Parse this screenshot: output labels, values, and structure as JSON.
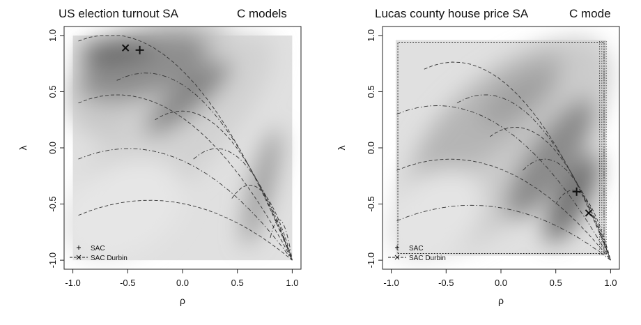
{
  "chart_data": [
    {
      "type": "heatmap",
      "title": "US election turnout SA",
      "subtitle": "C models",
      "xlabel": "ρ",
      "ylabel": "λ",
      "xlim": [
        -1.0,
        1.0
      ],
      "ylim": [
        -1.0,
        1.0
      ],
      "xticks": [
        "-1.0",
        "-0.5",
        "0.0",
        "0.5",
        "1.0"
      ],
      "yticks": [
        "-1.0",
        "-0.5",
        "0.0",
        "0.5",
        "1.0"
      ],
      "legend": {
        "position": "bottom-left",
        "entries": [
          "SAC",
          "SAC Durbin"
        ]
      },
      "points": [
        {
          "name": "SAC",
          "marker": "+",
          "x": -0.39,
          "y": 0.87
        },
        {
          "name": "SAC Durbin",
          "marker": "x",
          "x": -0.52,
          "y": 0.89
        }
      ]
    },
    {
      "type": "heatmap",
      "title": "Lucas county house price SA",
      "subtitle": "C mode",
      "xlabel": "ρ",
      "ylabel": "λ",
      "xlim": [
        -1.0,
        1.0
      ],
      "ylim": [
        -1.0,
        1.0
      ],
      "xticks": [
        "-1.0",
        "-0.5",
        "0.0",
        "0.5",
        "1.0"
      ],
      "yticks": [
        "-1.0",
        "-0.5",
        "0.0",
        "0.5",
        "1.0"
      ],
      "legend": {
        "position": "bottom-left",
        "entries": [
          "SAC",
          "SAC Durbin"
        ]
      },
      "points": [
        {
          "name": "SAC",
          "marker": "+",
          "x": 0.69,
          "y": -0.39
        },
        {
          "name": "SAC Durbin",
          "marker": "x",
          "x": 0.8,
          "y": -0.58
        }
      ]
    }
  ]
}
